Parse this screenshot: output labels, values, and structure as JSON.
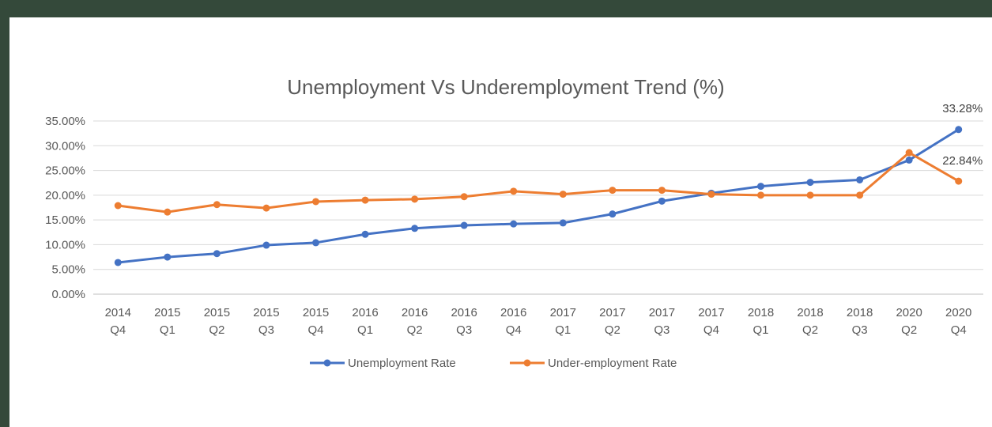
{
  "chart_data": {
    "type": "line",
    "title": "Unemployment  Vs Underemployment  Trend (%)",
    "categories": [
      [
        "2014",
        "Q4"
      ],
      [
        "2015",
        "Q1"
      ],
      [
        "2015",
        "Q2"
      ],
      [
        "2015",
        "Q3"
      ],
      [
        "2015",
        "Q4"
      ],
      [
        "2016",
        "Q1"
      ],
      [
        "2016",
        "Q2"
      ],
      [
        "2016",
        "Q3"
      ],
      [
        "2016",
        "Q4"
      ],
      [
        "2017",
        "Q1"
      ],
      [
        "2017",
        "Q2"
      ],
      [
        "2017",
        "Q3"
      ],
      [
        "2017",
        "Q4"
      ],
      [
        "2018",
        "Q1"
      ],
      [
        "2018",
        "Q2"
      ],
      [
        "2018",
        "Q3"
      ],
      [
        "2020",
        "Q2"
      ],
      [
        "2020",
        "Q4"
      ]
    ],
    "series": [
      {
        "name": "Unemployment Rate",
        "color": "#4472c4",
        "values": [
          6.4,
          7.5,
          8.2,
          9.9,
          10.4,
          12.1,
          13.3,
          13.9,
          14.2,
          14.4,
          16.2,
          18.8,
          20.4,
          21.8,
          22.6,
          23.1,
          27.1,
          33.28
        ]
      },
      {
        "name": "Under-employment Rate",
        "color": "#ed7d31",
        "values": [
          17.9,
          16.6,
          18.1,
          17.4,
          18.7,
          19.0,
          19.2,
          19.7,
          20.8,
          20.2,
          21.0,
          21.0,
          20.2,
          20.0,
          20.0,
          20.0,
          28.6,
          22.84
        ]
      }
    ],
    "ylim": [
      0,
      35
    ],
    "yticks": [
      "0.00%",
      "5.00%",
      "10.00%",
      "15.00%",
      "20.00%",
      "25.00%",
      "30.00%",
      "35.00%"
    ],
    "data_labels": [
      {
        "series": 0,
        "index": 17,
        "text": "33.28%"
      },
      {
        "series": 1,
        "index": 17,
        "text": "22.84%"
      }
    ],
    "grid": true,
    "legend": "bottom"
  }
}
